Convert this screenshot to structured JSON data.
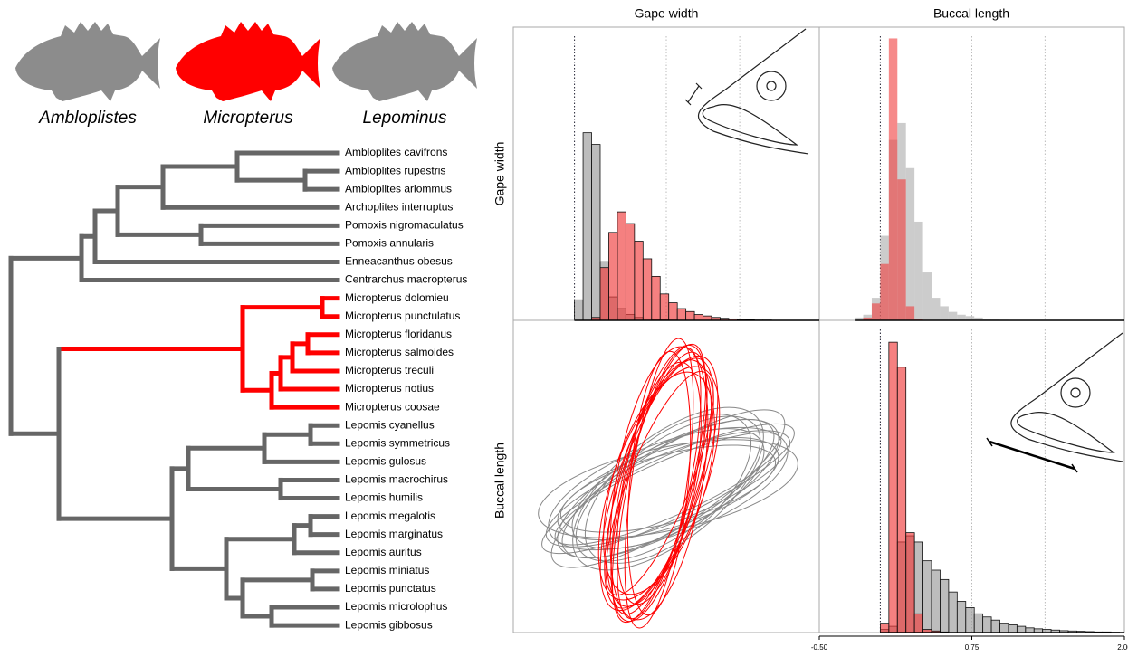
{
  "fish_labels": [
    "Ambloplistes",
    "Micropterus",
    "Lepominus"
  ],
  "tips": [
    "Ambloplites cavifrons",
    "Ambloplites rupestris",
    "Ambloplites ariommus",
    "Archoplites interruptus",
    "Pomoxis nigromaculatus",
    "Pomoxis annularis",
    "Enneacanthus obesus",
    "Centrarchus macropterus",
    "Micropterus dolomieu",
    "Micropterus punctulatus",
    "Micropterus floridanus",
    "Micropterus salmoides",
    "Micropterus treculi",
    "Micropterus notius",
    "Micropterus coosae",
    "Lepomis cyanellus",
    "Lepomis symmetricus",
    "Lepomis gulosus",
    "Lepomis macrochirus",
    "Lepomis humilis",
    "Lepomis megalotis",
    "Lepomis marginatus",
    "Lepomis auritus",
    "Lepomis miniatus",
    "Lepomis punctatus",
    "Lepomis microlophus",
    "Lepomis gibbosus"
  ],
  "column_titles": [
    "Gape width",
    "Buccal length"
  ],
  "row_titles": [
    "Gape width",
    "Buccal length"
  ],
  "chart_data": [
    {
      "type": "histogram",
      "xlim": [
        -0.5,
        2.0
      ],
      "ylim": [
        0,
        100
      ],
      "outline": true,
      "ref_lines": [
        0,
        0.75,
        1.35
      ],
      "bins": [
        0,
        0.07,
        0.14,
        0.21,
        0.28,
        0.35,
        0.42,
        0.49,
        0.56,
        0.63,
        0.7,
        0.77,
        0.84,
        0.91,
        0.98,
        1.05,
        1.12,
        1.19,
        1.26,
        1.33,
        1.4,
        1.47,
        1.54,
        1.61,
        1.68,
        1.75,
        1.82,
        1.89,
        1.96
      ],
      "series": [
        {
          "color": "#999999",
          "values": [
            7,
            64,
            60,
            20,
            8,
            4,
            2,
            1,
            0.5,
            0.3,
            0.2,
            0.1,
            0,
            0,
            0,
            0,
            0,
            0,
            0,
            0,
            0,
            0,
            0,
            0,
            0,
            0,
            0,
            0
          ]
        },
        {
          "color": "#f03c3c",
          "values": [
            0,
            0,
            1,
            18,
            30,
            37,
            33,
            27,
            21,
            15,
            9,
            6,
            4,
            3,
            2,
            1.5,
            1,
            0.7,
            0.5,
            0.3,
            0.2,
            0.1,
            0.1,
            0,
            0,
            0,
            0,
            0
          ]
        }
      ]
    },
    {
      "type": "histogram",
      "xlim": [
        -0.5,
        2.0
      ],
      "ylim": [
        0,
        104
      ],
      "outline": false,
      "ref_lines": [
        0,
        0.75,
        1.35
      ],
      "bins": [
        -0.21,
        -0.14,
        -0.07,
        0,
        0.07,
        0.14,
        0.21,
        0.28,
        0.35,
        0.42,
        0.49,
        0.56,
        0.63,
        0.7,
        0.77,
        0.84,
        0.91,
        0.98,
        1.05,
        1.12,
        1.19,
        1.26,
        1.33,
        1.4,
        1.47,
        1.54,
        1.61,
        1.68,
        1.75,
        1.82,
        1.89,
        1.96
      ],
      "series": [
        {
          "color": "#aaaaaa",
          "values": [
            1,
            2,
            8,
            30,
            64,
            70,
            54,
            35,
            17,
            8,
            5,
            3,
            2,
            1.5,
            1,
            0.5,
            0.3,
            0.2,
            0,
            0,
            0,
            0,
            0,
            0,
            0,
            0,
            0,
            0,
            0,
            0,
            0
          ]
        },
        {
          "color": "#f03c3c",
          "values": [
            0,
            1,
            6,
            20,
            100,
            50,
            5,
            0.5,
            0,
            0,
            0,
            0,
            0,
            0,
            0,
            0,
            0,
            0,
            0,
            0,
            0,
            0,
            0,
            0,
            0,
            0,
            0,
            0,
            0,
            0,
            0
          ]
        }
      ]
    },
    {
      "type": "ellipse",
      "series": [
        {
          "color": "#888888",
          "ellipses": [
            [
              0.8,
              0.28,
              28
            ],
            [
              0.85,
              0.22,
              22
            ],
            [
              0.7,
              0.3,
              35
            ],
            [
              0.75,
              0.25,
              18
            ],
            [
              0.9,
              0.2,
              25
            ],
            [
              0.65,
              0.32,
              40
            ],
            [
              0.78,
              0.26,
              30
            ],
            [
              0.82,
              0.3,
              20
            ],
            [
              0.72,
              0.22,
              15
            ],
            [
              0.88,
              0.25,
              32
            ],
            [
              0.68,
              0.28,
              26
            ],
            [
              0.8,
              0.18,
              24
            ],
            [
              0.74,
              0.34,
              38
            ],
            [
              0.86,
              0.27,
              12
            ]
          ]
        },
        {
          "color": "#ff0000",
          "ellipses": [
            [
              0.9,
              0.2,
              78
            ],
            [
              0.85,
              0.25,
              72
            ],
            [
              0.95,
              0.18,
              82
            ],
            [
              0.8,
              0.3,
              70
            ],
            [
              0.88,
              0.22,
              75
            ],
            [
              0.9,
              0.28,
              80
            ],
            [
              0.78,
              0.2,
              68
            ],
            [
              0.92,
              0.24,
              77
            ],
            [
              0.83,
              0.26,
              74
            ],
            [
              0.86,
              0.19,
              85
            ],
            [
              0.75,
              0.3,
              73
            ],
            [
              0.8,
              0.23,
              79
            ],
            [
              0.87,
              0.27,
              71
            ],
            [
              0.93,
              0.21,
              76
            ]
          ]
        }
      ]
    },
    {
      "type": "histogram",
      "xlim": [
        -0.5,
        2.0
      ],
      "ylim": [
        0,
        100
      ],
      "outline": true,
      "ref_lines": [
        0,
        0.75,
        1.35
      ],
      "xticks": [
        {
          "value": -0.5,
          "label": "-0.50"
        },
        0.75,
        {
          "value": 2.0,
          "label": "2.00"
        }
      ],
      "bins": [
        0,
        0.07,
        0.14,
        0.21,
        0.28,
        0.35,
        0.42,
        0.49,
        0.56,
        0.63,
        0.7,
        0.77,
        0.84,
        0.91,
        0.98,
        1.05,
        1.12,
        1.19,
        1.26,
        1.33,
        1.4,
        1.47,
        1.54,
        1.61,
        1.68,
        1.75,
        1.82,
        1.89,
        1.96
      ],
      "series": [
        {
          "color": "#999999",
          "values": [
            1,
            2,
            29,
            31,
            29,
            23,
            20,
            17,
            13,
            10,
            8,
            6,
            5,
            4,
            3,
            2.5,
            2,
            1.5,
            1.2,
            1,
            0.8,
            0.6,
            0.5,
            0.4,
            0.3,
            0.2,
            0.2,
            0.1
          ]
        },
        {
          "color": "#f03c3c",
          "values": [
            3,
            93,
            85,
            32,
            6,
            1,
            0.5,
            0.2,
            0,
            0,
            0,
            0,
            0,
            0,
            0,
            0,
            0,
            0,
            0,
            0,
            0,
            0,
            0,
            0,
            0,
            0,
            0,
            0
          ]
        }
      ]
    }
  ]
}
